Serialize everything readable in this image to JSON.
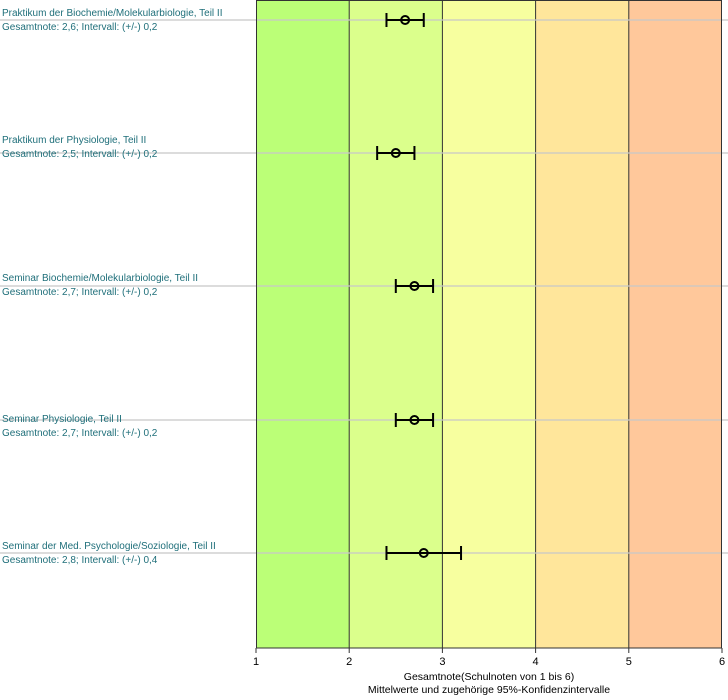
{
  "chart_data": {
    "type": "scatter",
    "x_axis": {
      "title": "Gesamtnote(Schulnoten von 1 bis 6)",
      "subtitle": "Mittelwerte und zugehörige 95%-Konfidenzintervalle",
      "range": [
        1,
        6
      ],
      "ticks": [
        "1",
        "2",
        "3",
        "4",
        "5",
        "6"
      ]
    },
    "bands": [
      {
        "from": 1,
        "to": 2,
        "color": "#bbff77"
      },
      {
        "from": 2,
        "to": 3,
        "color": "#dbff8c"
      },
      {
        "from": 3,
        "to": 4,
        "color": "#f7ff9f"
      },
      {
        "from": 4,
        "to": 5,
        "color": "#ffe69b"
      },
      {
        "from": 5,
        "to": 6,
        "color": "#ffc89b"
      }
    ],
    "items": [
      {
        "name": "Praktikum der Biochemie/Molekularbiologie, Teil II",
        "summary": "Gesamtnote: 2,6;  Intervall: (+/-) 0,2",
        "mean": 2.6,
        "interval": 0.2
      },
      {
        "name": "Praktikum der Physiologie, Teil II",
        "summary": "Gesamtnote: 2,5;  Intervall: (+/-) 0,2",
        "mean": 2.5,
        "interval": 0.2
      },
      {
        "name": "Seminar Biochemie/Molekularbiologie, Teil II",
        "summary": "Gesamtnote: 2,7;  Intervall: (+/-) 0,2",
        "mean": 2.7,
        "interval": 0.2
      },
      {
        "name": "Seminar Physiologie, Teil II",
        "summary": "Gesamtnote: 2,7;  Intervall: (+/-) 0,2",
        "mean": 2.7,
        "interval": 0.2
      },
      {
        "name": "Seminar der Med. Psychologie/Soziologie, Teil II",
        "summary": "Gesamtnote: 2,8;  Intervall: (+/-) 0,4",
        "mean": 2.8,
        "interval": 0.4
      }
    ]
  }
}
